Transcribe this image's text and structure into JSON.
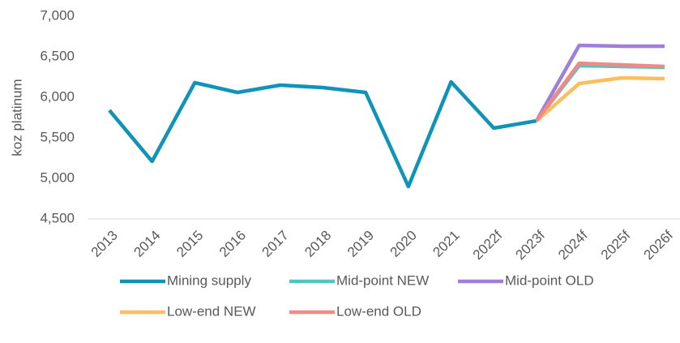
{
  "chart_data": {
    "type": "line",
    "y_label": "koz platinum",
    "categories": [
      "2013",
      "2014",
      "2015",
      "2016",
      "2017",
      "2018",
      "2019",
      "2020",
      "2021",
      "2022f",
      "2023f",
      "2024f",
      "2025f",
      "2026f"
    ],
    "series": [
      {
        "name": "Mining supply",
        "color": "#0f93b8",
        "values": [
          5840,
          5210,
          6180,
          6060,
          6150,
          6120,
          6060,
          4900,
          6190,
          5620,
          5710,
          null,
          null,
          null
        ]
      },
      {
        "name": "Mid-point NEW",
        "color": "#4fc7c4",
        "values": [
          null,
          null,
          null,
          null,
          null,
          null,
          null,
          null,
          null,
          null,
          5710,
          6390,
          6380,
          6370
        ]
      },
      {
        "name": "Mid-point OLD",
        "color": "#a07fd8",
        "values": [
          null,
          null,
          null,
          null,
          null,
          null,
          null,
          null,
          null,
          null,
          5710,
          6640,
          6630,
          6630
        ]
      },
      {
        "name": "Low-end NEW",
        "color": "#fbbf5e",
        "values": [
          null,
          null,
          null,
          null,
          null,
          null,
          null,
          null,
          null,
          null,
          5710,
          6170,
          6240,
          6230
        ]
      },
      {
        "name": "Low-end OLD",
        "color": "#ef8a86",
        "values": [
          null,
          null,
          null,
          null,
          null,
          null,
          null,
          null,
          null,
          null,
          5710,
          6420,
          6400,
          6380
        ]
      }
    ],
    "ylim": [
      4500,
      7000
    ],
    "yticks": [
      {
        "value": 4500,
        "label": "4,500"
      },
      {
        "value": 5000,
        "label": "5,000"
      },
      {
        "value": 5500,
        "label": "5,500"
      },
      {
        "value": 6000,
        "label": "6,000"
      },
      {
        "value": 6500,
        "label": "6,500"
      },
      {
        "value": 7000,
        "label": "7,000"
      }
    ],
    "legend": "bottom"
  }
}
